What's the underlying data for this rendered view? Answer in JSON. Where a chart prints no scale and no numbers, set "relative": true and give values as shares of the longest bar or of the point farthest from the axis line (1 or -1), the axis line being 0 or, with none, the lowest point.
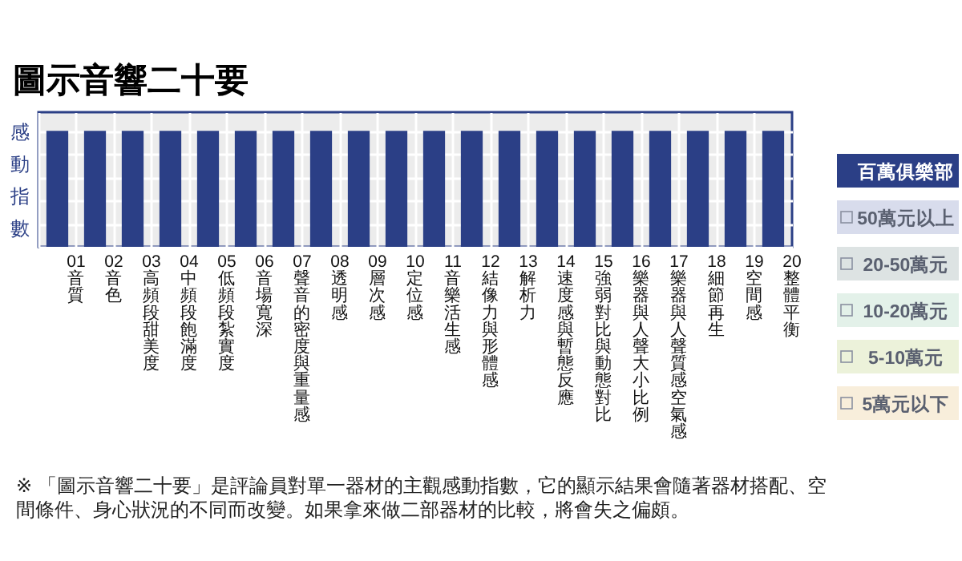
{
  "chart_data": {
    "type": "bar",
    "title": "圖示音響二十要",
    "ylabel": "感動指數",
    "relative": true,
    "grid": true,
    "legend": "right",
    "categories": [
      "01 音質",
      "02 音色",
      "03 高頻段甜美度",
      "04 中頻段飽滿度",
      "05 低頻段紮實度",
      "06 音場寬深",
      "07 聲音的密度與重量感",
      "08 透明感",
      "09 層次感",
      "10 定位感",
      "11 音樂活生感",
      "12 結像力與形體感",
      "13 解析力",
      "14 速度感與暫態反應",
      "15 強弱對比與動態對比",
      "16 樂器與人聲大小比例",
      "17 樂器與人聲質感空氣感",
      "18 細節再生",
      "19 空間感",
      "20 整體平衡"
    ],
    "series": [
      {
        "name": "百萬俱樂部",
        "color": "#2b3f86",
        "values": [
          1,
          1,
          1,
          1,
          1,
          1,
          1,
          1,
          1,
          1,
          1,
          1,
          1,
          1,
          1,
          1,
          1,
          1,
          1,
          1
        ]
      },
      {
        "name": "50萬元以上",
        "color": "#d8dcec",
        "values": [
          null,
          null,
          null,
          null,
          null,
          null,
          null,
          null,
          null,
          null,
          null,
          null,
          null,
          null,
          null,
          null,
          null,
          null,
          null,
          null
        ]
      },
      {
        "name": "20-50萬元",
        "color": "#dde3e3",
        "values": [
          null,
          null,
          null,
          null,
          null,
          null,
          null,
          null,
          null,
          null,
          null,
          null,
          null,
          null,
          null,
          null,
          null,
          null,
          null,
          null
        ]
      },
      {
        "name": "10-20萬元",
        "color": "#e3f1e9",
        "values": [
          null,
          null,
          null,
          null,
          null,
          null,
          null,
          null,
          null,
          null,
          null,
          null,
          null,
          null,
          null,
          null,
          null,
          null,
          null,
          null
        ]
      },
      {
        "name": "5-10萬元",
        "color": "#ecf2da",
        "values": [
          null,
          null,
          null,
          null,
          null,
          null,
          null,
          null,
          null,
          null,
          null,
          null,
          null,
          null,
          null,
          null,
          null,
          null,
          null,
          null
        ]
      },
      {
        "name": "5萬元以下",
        "color": "#f8eedb",
        "values": [
          null,
          null,
          null,
          null,
          null,
          null,
          null,
          null,
          null,
          null,
          null,
          null,
          null,
          null,
          null,
          null,
          null,
          null,
          null,
          null
        ]
      }
    ],
    "annotations": [
      "※ 「圖示音響二十要」是評論員對單一器材的主觀感動指數，它的顯示結果會隨著器材搭配、空間條件、身心狀況的不同而改變。如果拿來做二部器材的比較，將會失之偏頗。"
    ]
  }
}
